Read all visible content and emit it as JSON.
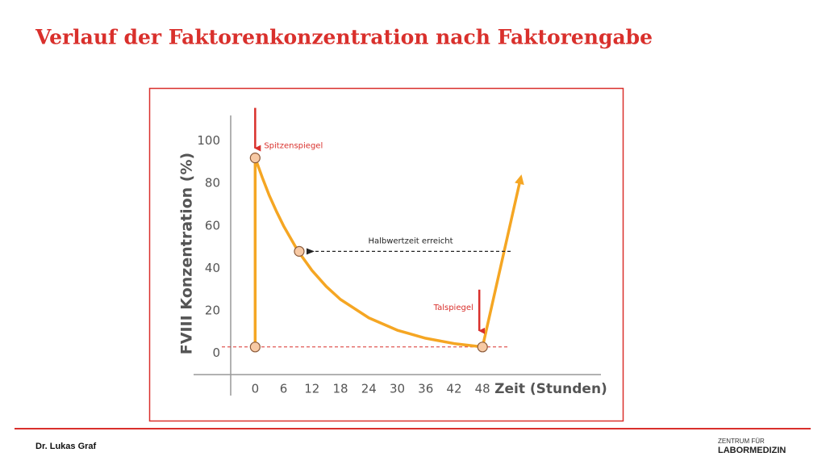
{
  "slide": {
    "title": "Verlauf der Faktorenkonzentration nach Faktorengabe",
    "author": "Dr. Lukas Graf",
    "logo_top": "ZENTRUM FÜR",
    "logo_bottom": "LABORMEDIZIN"
  },
  "chart_data": {
    "type": "line",
    "y_label": "FVIII Konzentration (%)",
    "x_label": "Zeit (Stunden)",
    "series": [
      {
        "color": "#f5a623",
        "x": [
          0,
          0,
          1.5,
          3,
          4.5,
          6,
          9,
          12,
          15,
          18,
          24,
          30,
          36,
          42,
          48,
          56
        ],
        "values": [
          3,
          92,
          82.8,
          74.2,
          66.8,
          60,
          48.3,
          39,
          31.5,
          25.4,
          16.7,
          10.9,
          7.1,
          4.6,
          3,
          82
        ]
      }
    ],
    "points": {
      "x": [
        0,
        0,
        9.3,
        48
      ],
      "values": [
        3,
        92,
        48,
        3
      ]
    },
    "reference_value": 3,
    "annotations": [
      "Spitzenspiegel",
      "Halbwertzeit erreicht",
      "Talspiegel"
    ],
    "xlim": [
      -13,
      73
    ],
    "ylim": [
      -10,
      112
    ],
    "xticks": [
      0,
      6,
      12,
      18,
      24,
      30,
      36,
      42,
      48
    ],
    "yticks": [
      0,
      20,
      40,
      60,
      80,
      100
    ]
  }
}
